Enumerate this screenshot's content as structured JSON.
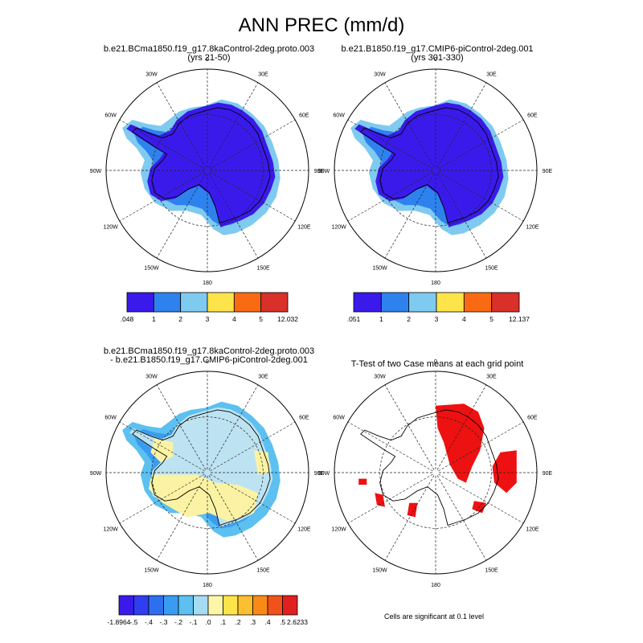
{
  "figure": {
    "title": "ANN PREC (mm/d)",
    "note": "Cells are significant at 0.1 level"
  },
  "chart_data": [
    {
      "type": "heatmap",
      "projection": "south-polar-stereographic",
      "title_lines": [
        "b.e21.BCma1850.f19_g17.8kaControl-2deg.proto.003",
        "(yrs 21-50)"
      ],
      "lon_labels": [
        "0",
        "30E",
        "60E",
        "90E",
        "120E",
        "150E",
        "180",
        "150W",
        "120W",
        "90W",
        "60W",
        "30W"
      ],
      "colorbar": {
        "labels": [
          ".048",
          "1",
          "2",
          "3",
          "4",
          "5",
          "12.032"
        ],
        "colors": [
          "#3a1aeb",
          "#2e82ee",
          "#7fcaf0",
          "#fde44a",
          "#fa6a12",
          "#d9302a"
        ]
      },
      "interior_color": "#3a1aeb"
    },
    {
      "type": "heatmap",
      "projection": "south-polar-stereographic",
      "title_lines": [
        "b.e21.B1850.f19_g17.CMIP6-piControl-2deg.001",
        "(yrs 301-330)"
      ],
      "lon_labels": [
        "0",
        "30E",
        "60E",
        "90E",
        "120E",
        "150E",
        "180",
        "150W",
        "120W",
        "90W",
        "60W",
        "30W"
      ],
      "colorbar": {
        "labels": [
          ".051",
          "1",
          "2",
          "3",
          "4",
          "5",
          "12.137"
        ],
        "colors": [
          "#3a1aeb",
          "#2e82ee",
          "#7fcaf0",
          "#fde44a",
          "#fa6a12",
          "#d9302a"
        ]
      },
      "interior_color": "#3a1aeb"
    },
    {
      "type": "heatmap",
      "projection": "south-polar-stereographic",
      "title_lines": [
        "b.e21.BCma1850.f19_g17.8kaControl-2deg.proto.003",
        "- b.e21.B1850.f19_g17.CMIP6-piControl-2deg.001"
      ],
      "lon_labels": [
        "0",
        "30E",
        "60E",
        "90E",
        "120E",
        "150E",
        "180",
        "150W",
        "120W",
        "90W",
        "60W",
        "30W"
      ],
      "colorbar": {
        "labels": [
          "-1.8964",
          "-.5",
          "-.4",
          "-.3",
          "-.2",
          "-.1",
          ".0",
          ".1",
          ".2",
          ".3",
          ".4",
          ".5",
          "2.6233"
        ],
        "colors": [
          "#3a1aeb",
          "#2f3ef0",
          "#2e6ff0",
          "#3a9cf0",
          "#5cc0f0",
          "#a6dcf2",
          "#fdf6a8",
          "#fde44a",
          "#fcbf30",
          "#fa8a18",
          "#f0521a",
          "#e01f1f"
        ]
      },
      "interior_color": "#bde3f2",
      "secondary_color": "#fbf3a3"
    },
    {
      "type": "heatmap",
      "projection": "south-polar-stereographic",
      "title_lines": [
        "T-Test of two Case means at each grid point"
      ],
      "lon_labels": [
        "0",
        "30E",
        "60E",
        "90E",
        "120E",
        "150E",
        "180",
        "150W",
        "120W",
        "90W",
        "60W",
        "30W"
      ],
      "significant_color": "#ee1111",
      "significance_level": 0.1
    }
  ]
}
